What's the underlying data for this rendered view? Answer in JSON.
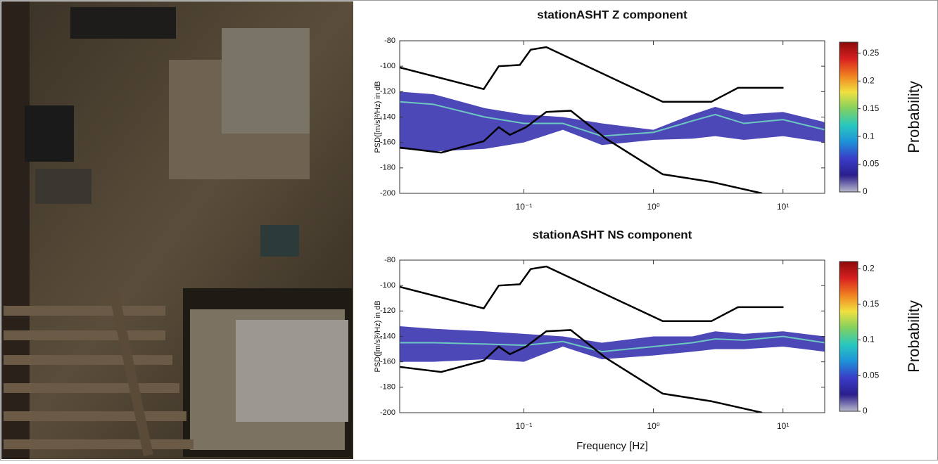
{
  "chart_data": [
    {
      "type": "psd",
      "title": "stationASHT Z component",
      "y_label": "PSD([m/s]²/Hz) in dB",
      "log_x": true,
      "xlim": [
        0.011,
        21
      ],
      "ylim": [
        -200,
        -80
      ],
      "xticks": [
        {
          "value": 0.1,
          "label": "10⁻¹"
        },
        {
          "value": 1,
          "label": "10⁰"
        },
        {
          "value": 10,
          "label": "10¹"
        }
      ],
      "yticks": [
        -200,
        -180,
        -160,
        -140,
        -120,
        -100,
        -80
      ],
      "band": {
        "color": "#3a34b0",
        "x": [
          0.011,
          0.02,
          0.05,
          0.1,
          0.2,
          0.4,
          1,
          2,
          3,
          5,
          10,
          21
        ],
        "upper": [
          -120,
          -122,
          -133,
          -138,
          -140,
          -145,
          -150,
          -138,
          -132,
          -138,
          -136,
          -144
        ],
        "lower": [
          -165,
          -167,
          -165,
          -160,
          -150,
          -162,
          -158,
          -157,
          -155,
          -158,
          -155,
          -160
        ]
      },
      "mode": {
        "color": "#6cc8c0",
        "x": [
          0.011,
          0.02,
          0.05,
          0.1,
          0.2,
          0.4,
          1,
          2,
          3,
          5,
          10,
          21
        ],
        "values": [
          -128,
          -130,
          -140,
          -145,
          -145,
          -155,
          -152,
          -143,
          -138,
          -145,
          -142,
          -150
        ]
      },
      "noise_models": [
        {
          "color": "#000000",
          "x": [
            0.011,
            0.049,
            0.064,
            0.093,
            0.113,
            0.149,
            1.18,
            2.8,
            4.5,
            10.1
          ],
          "values": [
            -101,
            -118,
            -100,
            -99,
            -87,
            -85,
            -128,
            -128,
            -117,
            -117
          ]
        },
        {
          "color": "#000000",
          "x": [
            0.011,
            0.023,
            0.049,
            0.064,
            0.078,
            0.104,
            0.149,
            0.23,
            0.43,
            1.18,
            2.8,
            6.9
          ],
          "values": [
            -164,
            -168,
            -159,
            -148,
            -154,
            -148,
            -136,
            -135,
            -157,
            -185,
            -191,
            -200
          ]
        }
      ],
      "colorbar": {
        "label": "Probability",
        "lim": [
          0,
          0.27
        ],
        "ticks": [
          0,
          0.05,
          0.1,
          0.15,
          0.2,
          0.25
        ],
        "colors": [
          "#b8b8cc",
          "#2a1e8c",
          "#3a3cc8",
          "#1e90d8",
          "#28c8c0",
          "#80d060",
          "#f0e040",
          "#f08020",
          "#d82020",
          "#8c0a0a"
        ]
      }
    },
    {
      "type": "psd",
      "title": "stationASHT NS component",
      "y_label": "PSD([m/s]²/Hz) in dB",
      "x_label": "Frequency [Hz]",
      "log_x": true,
      "xlim": [
        0.011,
        21
      ],
      "ylim": [
        -200,
        -80
      ],
      "xticks": [
        {
          "value": 0.1,
          "label": "10⁻¹"
        },
        {
          "value": 1,
          "label": "10⁰"
        },
        {
          "value": 10,
          "label": "10¹"
        }
      ],
      "yticks": [
        -200,
        -180,
        -160,
        -140,
        -120,
        -100,
        -80
      ],
      "band": {
        "color": "#3a34b0",
        "x": [
          0.011,
          0.02,
          0.05,
          0.1,
          0.2,
          0.4,
          1,
          2,
          3,
          5,
          10,
          21
        ],
        "upper": [
          -132,
          -134,
          -136,
          -138,
          -140,
          -145,
          -140,
          -140,
          -136,
          -138,
          -136,
          -140
        ],
        "lower": [
          -160,
          -160,
          -158,
          -160,
          -148,
          -158,
          -155,
          -152,
          -150,
          -150,
          -148,
          -152
        ]
      },
      "mode": {
        "color": "#6cc8c0",
        "x": [
          0.011,
          0.02,
          0.05,
          0.1,
          0.2,
          0.4,
          1,
          2,
          3,
          5,
          10,
          21
        ],
        "values": [
          -145,
          -145,
          -146,
          -147,
          -144,
          -152,
          -148,
          -145,
          -142,
          -143,
          -140,
          -145
        ]
      },
      "noise_models": [
        {
          "color": "#000000",
          "x": [
            0.011,
            0.049,
            0.064,
            0.093,
            0.113,
            0.149,
            1.18,
            2.8,
            4.5,
            10.1
          ],
          "values": [
            -101,
            -118,
            -100,
            -99,
            -87,
            -85,
            -128,
            -128,
            -117,
            -117
          ]
        },
        {
          "color": "#000000",
          "x": [
            0.011,
            0.023,
            0.049,
            0.064,
            0.078,
            0.104,
            0.149,
            0.23,
            0.43,
            1.18,
            2.8,
            6.9
          ],
          "values": [
            -164,
            -168,
            -159,
            -148,
            -154,
            -148,
            -136,
            -135,
            -157,
            -185,
            -191,
            -200
          ]
        }
      ],
      "colorbar": {
        "label": "Probability",
        "lim": [
          0,
          0.21
        ],
        "ticks": [
          0,
          0.05,
          0.1,
          0.15,
          0.2
        ],
        "colors": [
          "#b8b8cc",
          "#2a1e8c",
          "#3a3cc8",
          "#1e90d8",
          "#28c8c0",
          "#80d060",
          "#f0e040",
          "#f08020",
          "#d82020",
          "#8c0a0a"
        ]
      }
    }
  ]
}
